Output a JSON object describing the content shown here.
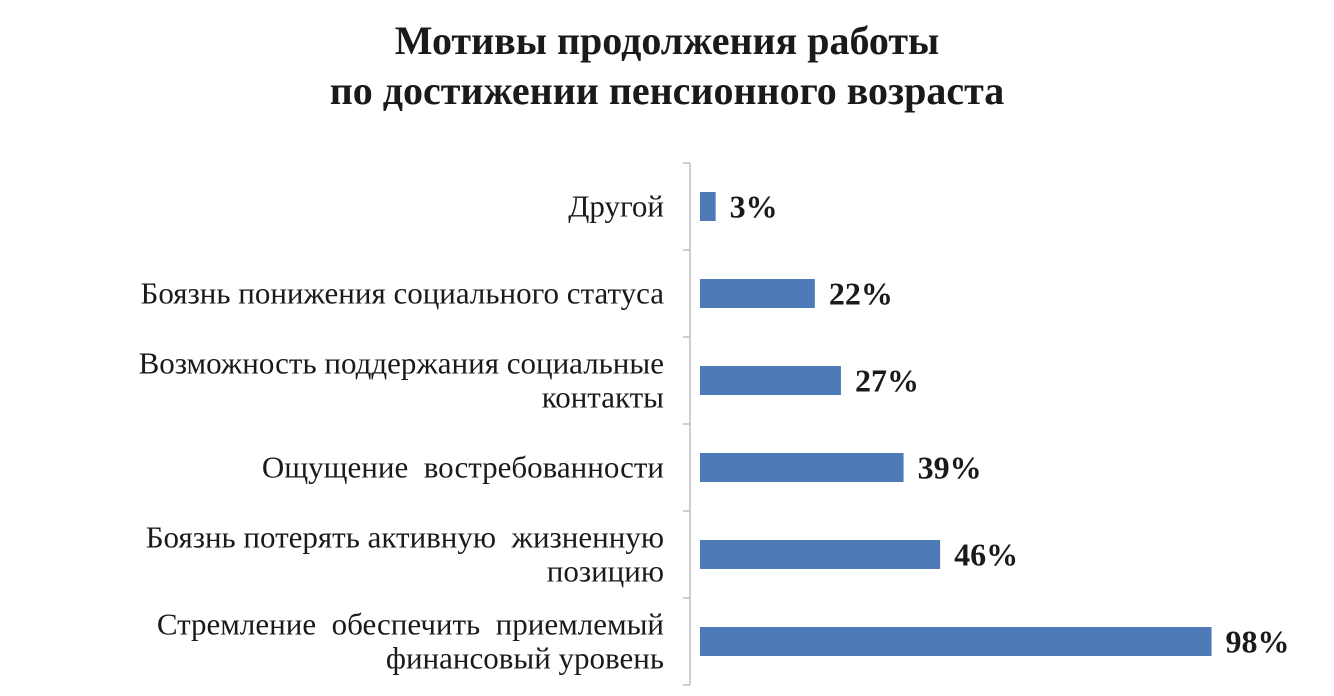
{
  "chart_data": {
    "type": "bar",
    "orientation": "horizontal",
    "title_lines": [
      "Мотивы продолжения работы",
      "по достижении пенсионного  возраста"
    ],
    "categories": [
      [
        "Другой"
      ],
      [
        "Боязнь понижения социального статуса"
      ],
      [
        "Возможность поддержания социальные",
        "контакты"
      ],
      [
        "Ощущение  востребованности"
      ],
      [
        "Боязнь потерять активную  жизненную",
        "позицию"
      ],
      [
        "Стремление  обеспечить  приемлемый",
        "финансовый уровень"
      ]
    ],
    "values": [
      3,
      22,
      27,
      39,
      46,
      98
    ],
    "value_labels": [
      "3%",
      "22%",
      "27%",
      "39%",
      "46%",
      "98%"
    ],
    "unit": "%",
    "xlim": [
      0,
      100
    ],
    "bar_color": "#4f7ab8",
    "axis_color": "#bfbfbf",
    "grid": false,
    "legend": "none"
  }
}
